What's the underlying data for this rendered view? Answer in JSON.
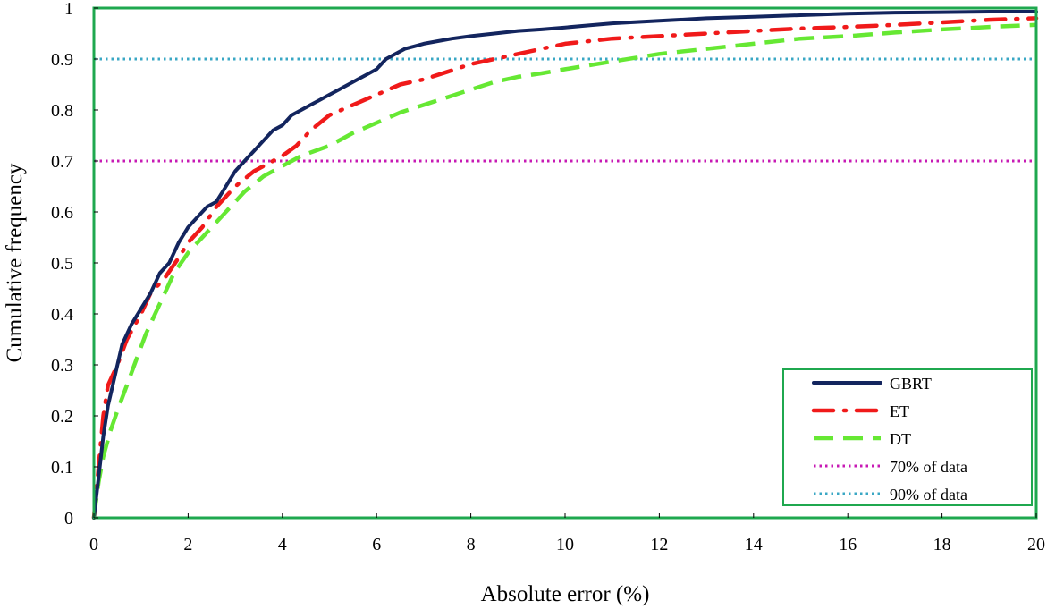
{
  "chart_data": {
    "type": "line",
    "title": "",
    "xlabel": "Absolute error (%)",
    "ylabel": "Cumulative frequency",
    "xlim": [
      0,
      20
    ],
    "ylim": [
      0,
      1
    ],
    "xticks": [
      "0",
      "2",
      "4",
      "6",
      "8",
      "10",
      "12",
      "14",
      "16",
      "18",
      "20"
    ],
    "yticks": [
      "0",
      "0.1",
      "0.2",
      "0.3",
      "0.4",
      "0.5",
      "0.6",
      "0.7",
      "0.8",
      "0.9",
      "1"
    ],
    "grid": false,
    "legend_position": "bottom-right",
    "colors": {
      "frame": "#1fa84f",
      "gbrt": "#13255e",
      "et": "#f01a1a",
      "dt": "#66e833",
      "ref70": "#c71ab4",
      "ref90": "#3aa7c4"
    },
    "series": [
      {
        "name": "GBRT",
        "style": "solid",
        "x": [
          0,
          0.1,
          0.2,
          0.3,
          0.45,
          0.6,
          0.8,
          1.0,
          1.2,
          1.4,
          1.6,
          1.8,
          2.0,
          2.2,
          2.4,
          2.6,
          2.8,
          3.0,
          3.2,
          3.4,
          3.6,
          3.8,
          4.0,
          4.2,
          4.4,
          4.6,
          4.8,
          5.0,
          5.2,
          5.4,
          5.6,
          5.8,
          6.0,
          6.2,
          6.4,
          6.6,
          6.8,
          7.0,
          7.3,
          7.6,
          8.0,
          8.5,
          9.0,
          9.5,
          10.0,
          10.5,
          11.0,
          12.0,
          13.0,
          14.0,
          15.0,
          16.0,
          17.0,
          18.0,
          19.0,
          20.0
        ],
        "values": [
          0,
          0.08,
          0.16,
          0.22,
          0.28,
          0.34,
          0.38,
          0.41,
          0.44,
          0.48,
          0.5,
          0.54,
          0.57,
          0.59,
          0.61,
          0.62,
          0.65,
          0.68,
          0.7,
          0.72,
          0.74,
          0.76,
          0.77,
          0.79,
          0.8,
          0.81,
          0.82,
          0.83,
          0.84,
          0.85,
          0.86,
          0.87,
          0.88,
          0.9,
          0.91,
          0.92,
          0.925,
          0.93,
          0.935,
          0.94,
          0.945,
          0.95,
          0.955,
          0.958,
          0.962,
          0.966,
          0.97,
          0.975,
          0.98,
          0.983,
          0.986,
          0.989,
          0.991,
          0.992,
          0.993,
          0.993
        ]
      },
      {
        "name": "ET",
        "style": "dash-dot",
        "x": [
          0,
          0.1,
          0.2,
          0.3,
          0.5,
          0.7,
          1.0,
          1.2,
          1.5,
          1.8,
          2.0,
          2.3,
          2.6,
          3.0,
          3.4,
          3.8,
          4.0,
          4.3,
          4.6,
          5.0,
          5.5,
          6.0,
          6.5,
          7.0,
          7.5,
          8.0,
          8.5,
          9.0,
          9.5,
          10.0,
          11.0,
          12.0,
          13.0,
          14.0,
          15.0,
          16.0,
          17.0,
          18.0,
          19.0,
          20.0
        ],
        "values": [
          0,
          0.1,
          0.2,
          0.26,
          0.3,
          0.35,
          0.4,
          0.44,
          0.47,
          0.51,
          0.54,
          0.57,
          0.61,
          0.65,
          0.68,
          0.7,
          0.71,
          0.73,
          0.76,
          0.79,
          0.81,
          0.83,
          0.85,
          0.86,
          0.875,
          0.89,
          0.9,
          0.91,
          0.92,
          0.93,
          0.94,
          0.945,
          0.95,
          0.955,
          0.96,
          0.963,
          0.967,
          0.972,
          0.977,
          0.98
        ]
      },
      {
        "name": "DT",
        "style": "dashed",
        "x": [
          0,
          0.1,
          0.2,
          0.35,
          0.5,
          0.7,
          0.9,
          1.1,
          1.3,
          1.5,
          1.7,
          2.0,
          2.4,
          2.8,
          3.2,
          3.6,
          4.0,
          4.4,
          5.0,
          5.5,
          6.0,
          6.5,
          7.0,
          7.5,
          8.0,
          8.5,
          9.0,
          9.5,
          10.0,
          11.0,
          12.0,
          13.0,
          14.0,
          15.0,
          16.0,
          17.0,
          18.0,
          19.0,
          20.0
        ],
        "values": [
          0,
          0.07,
          0.12,
          0.17,
          0.21,
          0.26,
          0.31,
          0.36,
          0.4,
          0.44,
          0.48,
          0.52,
          0.56,
          0.6,
          0.64,
          0.67,
          0.69,
          0.71,
          0.73,
          0.755,
          0.775,
          0.795,
          0.81,
          0.825,
          0.84,
          0.855,
          0.865,
          0.872,
          0.88,
          0.895,
          0.91,
          0.92,
          0.93,
          0.94,
          0.945,
          0.952,
          0.958,
          0.963,
          0.967
        ]
      },
      {
        "name": "70% of data",
        "style": "dotted",
        "x": [
          0,
          20
        ],
        "values": [
          0.7,
          0.7
        ]
      },
      {
        "name": "90% of data",
        "style": "dotted",
        "x": [
          0,
          20
        ],
        "values": [
          0.9,
          0.9
        ]
      }
    ]
  }
}
